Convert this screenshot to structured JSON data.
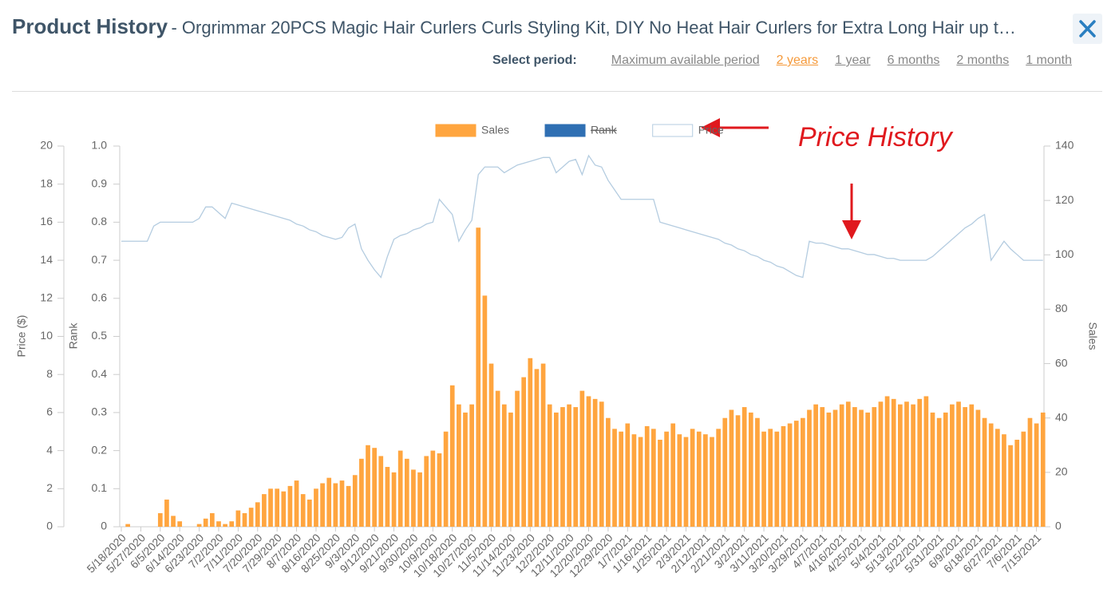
{
  "header": {
    "title": "Product History",
    "subtitle": "- Orgrimmar 20PCS Magic Hair Curlers Curls Styling Kit, DIY No Heat Hair Curlers for Extra Long Hair up t…",
    "period_label": "Select period:",
    "periods": [
      "Maximum available period",
      "2 years",
      "1 year",
      "6 months",
      "2 months",
      "1 month"
    ],
    "active_period": 1
  },
  "annotation": "Price History",
  "chart_data": {
    "type": "bar",
    "categories": [
      "5/18/2020",
      null,
      null,
      "5/27/2020",
      null,
      null,
      "6/5/2020",
      null,
      null,
      "6/14/2020",
      null,
      null,
      "6/23/2020",
      null,
      null,
      "7/2/2020",
      null,
      null,
      "7/11/2020",
      null,
      null,
      "7/20/2020",
      null,
      null,
      "7/29/2020",
      null,
      null,
      "8/7/2020",
      null,
      null,
      "8/16/2020",
      null,
      null,
      "8/25/2020",
      null,
      null,
      "9/3/2020",
      null,
      null,
      "9/12/2020",
      null,
      null,
      "9/21/2020",
      null,
      null,
      "9/30/2020",
      null,
      null,
      "10/9/2020",
      null,
      null,
      "10/18/2020",
      null,
      null,
      "10/27/2020",
      null,
      null,
      "11/5/2020",
      null,
      null,
      "11/14/2020",
      null,
      null,
      "11/23/2020",
      null,
      null,
      "12/2/2020",
      null,
      null,
      "12/11/2020",
      null,
      null,
      "12/20/2020",
      null,
      null,
      "12/29/2020",
      null,
      null,
      "1/7/2021",
      null,
      null,
      "1/16/2021",
      null,
      null,
      "1/25/2021",
      null,
      null,
      "2/3/2021",
      null,
      null,
      "2/12/2021",
      null,
      null,
      "2/21/2021",
      null,
      null,
      "3/2/2021",
      null,
      null,
      "3/11/2021",
      null,
      null,
      "3/20/2021",
      null,
      null,
      "3/29/2021",
      null,
      null,
      "4/7/2021",
      null,
      null,
      "4/16/2021",
      null,
      null,
      "4/25/2021",
      null,
      null,
      "5/4/2021",
      null,
      null,
      "5/13/2021",
      null,
      null,
      "5/22/2021",
      null,
      null,
      "5/31/2021",
      null,
      null,
      "6/9/2021",
      null,
      null,
      "6/18/2021",
      null,
      null,
      "6/27/2021",
      null,
      null,
      "7/6/2021",
      null,
      null,
      "7/15/2021",
      null
    ],
    "series": [
      {
        "name": "Sales",
        "color": "#ffa53f",
        "axis": "y2",
        "values": [
          0,
          1,
          0,
          0,
          0,
          0,
          5,
          10,
          4,
          2,
          0,
          0,
          1,
          3,
          5,
          2,
          1,
          2,
          6,
          5,
          7,
          9,
          12,
          14,
          14,
          13,
          15,
          17,
          12,
          10,
          14,
          16,
          18,
          16,
          17,
          15,
          19,
          25,
          30,
          29,
          26,
          22,
          20,
          28,
          25,
          21,
          20,
          26,
          28,
          27,
          35,
          52,
          45,
          42,
          45,
          110,
          85,
          60,
          50,
          45,
          42,
          50,
          55,
          62,
          58,
          60,
          45,
          42,
          44,
          45,
          44,
          50,
          48,
          47,
          46,
          40,
          36,
          35,
          38,
          34,
          33,
          37,
          36,
          32,
          35,
          38,
          34,
          33,
          36,
          35,
          34,
          33,
          36,
          40,
          43,
          41,
          44,
          42,
          40,
          35,
          36,
          35,
          37,
          38,
          39,
          40,
          43,
          45,
          44,
          42,
          43,
          45,
          46,
          44,
          43,
          42,
          44,
          46,
          48,
          47,
          45,
          46,
          45,
          47,
          48,
          42,
          40,
          42,
          45,
          46,
          44,
          45,
          43,
          40,
          38,
          36,
          34,
          30,
          32,
          35,
          40,
          38,
          42
        ]
      },
      {
        "name": "Rank",
        "color": "#2f6fb3",
        "visible": false
      },
      {
        "name": "Price",
        "color": "#b4cce0",
        "type": "line",
        "axis": "y",
        "values": [
          15,
          15,
          15,
          15,
          15,
          15.8,
          16,
          16,
          16,
          16,
          16,
          16,
          16.2,
          16.8,
          16.8,
          16.5,
          16.2,
          17,
          16.9,
          16.8,
          16.7,
          16.6,
          16.5,
          16.4,
          16.3,
          16.2,
          16.1,
          15.9,
          15.8,
          15.6,
          15.5,
          15.3,
          15.2,
          15.1,
          15.2,
          15.7,
          15.9,
          14.6,
          14,
          13.5,
          13.1,
          14.2,
          15.1,
          15.3,
          15.4,
          15.6,
          15.7,
          15.9,
          16,
          17.2,
          16.8,
          16.4,
          15,
          15.6,
          16.1,
          18.5,
          18.9,
          18.9,
          18.9,
          18.6,
          18.8,
          19,
          19.1,
          19.2,
          19.3,
          19.4,
          19.4,
          18.6,
          18.9,
          19.2,
          19.3,
          18.5,
          19.5,
          19,
          18.9,
          18.2,
          17.7,
          17.2,
          17.2,
          17.2,
          17.2,
          17.2,
          17.2,
          16,
          15.9,
          15.8,
          15.7,
          15.6,
          15.5,
          15.4,
          15.3,
          15.2,
          15.1,
          14.9,
          14.8,
          14.6,
          14.5,
          14.3,
          14.2,
          14,
          13.9,
          13.7,
          13.6,
          13.4,
          13.2,
          13.1,
          15,
          14.9,
          14.9,
          14.8,
          14.7,
          14.6,
          14.6,
          14.5,
          14.4,
          14.3,
          14.3,
          14.2,
          14.1,
          14.1,
          14,
          14,
          14,
          14,
          14,
          14.2,
          14.5,
          14.8,
          15.1,
          15.4,
          15.7,
          15.9,
          16.2,
          16.4,
          14,
          14.5,
          15,
          14.6,
          14.3,
          14,
          14,
          14,
          14
        ]
      }
    ],
    "ylabel": "Price ($)",
    "ylim": [
      0,
      20
    ],
    "yticks": [
      0,
      2,
      4,
      6,
      8,
      10,
      12,
      14,
      16,
      18,
      20
    ],
    "rank_axis": {
      "label": "Rank",
      "lim": [
        0,
        1
      ],
      "ticks": [
        0,
        0.1,
        0.2,
        0.3,
        0.4,
        0.5,
        0.6,
        0.7,
        0.8,
        0.9,
        {
          "value": 1,
          "label": "1.0"
        }
      ]
    },
    "y2label": "Sales",
    "y2lim": [
      0,
      140
    ],
    "y2ticks": [
      0,
      20,
      40,
      60,
      80,
      100,
      120,
      140
    ]
  }
}
